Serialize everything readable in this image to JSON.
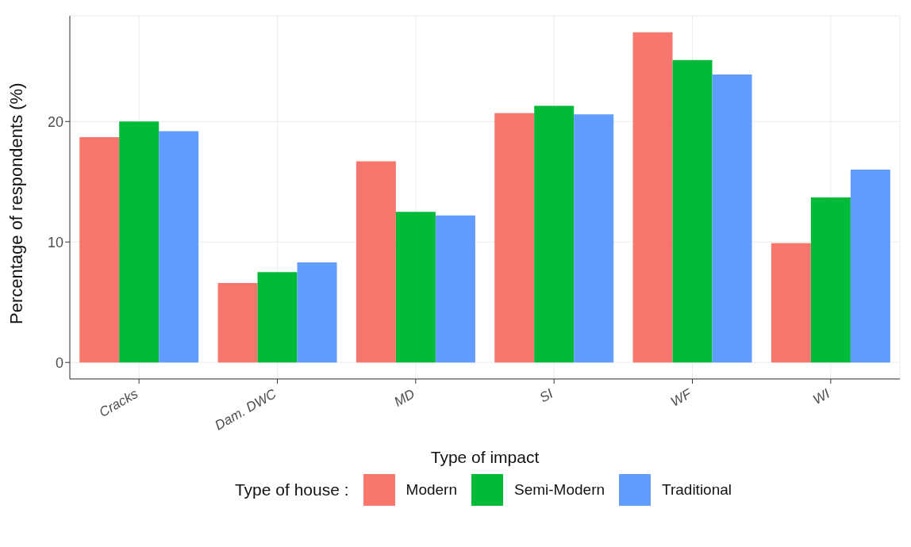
{
  "chart_data": {
    "type": "bar",
    "xlabel": "Type of impact",
    "ylabel": "Percentage of respondents (%)",
    "legend_title": "Type of house :",
    "categories": [
      "Cracks",
      "Dam. DWC",
      "MD",
      "SI",
      "WF",
      "WI"
    ],
    "series": [
      {
        "name": "Modern",
        "color": "#f8766d",
        "values": [
          18.7,
          6.6,
          16.7,
          20.7,
          27.4,
          9.9
        ]
      },
      {
        "name": "Semi-Modern",
        "color": "#00ba38",
        "values": [
          20.0,
          7.5,
          12.5,
          21.3,
          25.1,
          13.7
        ]
      },
      {
        "name": "Traditional",
        "color": "#619cff",
        "values": [
          19.2,
          8.3,
          12.2,
          20.6,
          23.9,
          16.0
        ]
      }
    ],
    "ylim": [
      -1.37,
      28.77
    ],
    "yticks": [
      0,
      10,
      20
    ],
    "grid": true,
    "legend": "bottom"
  }
}
